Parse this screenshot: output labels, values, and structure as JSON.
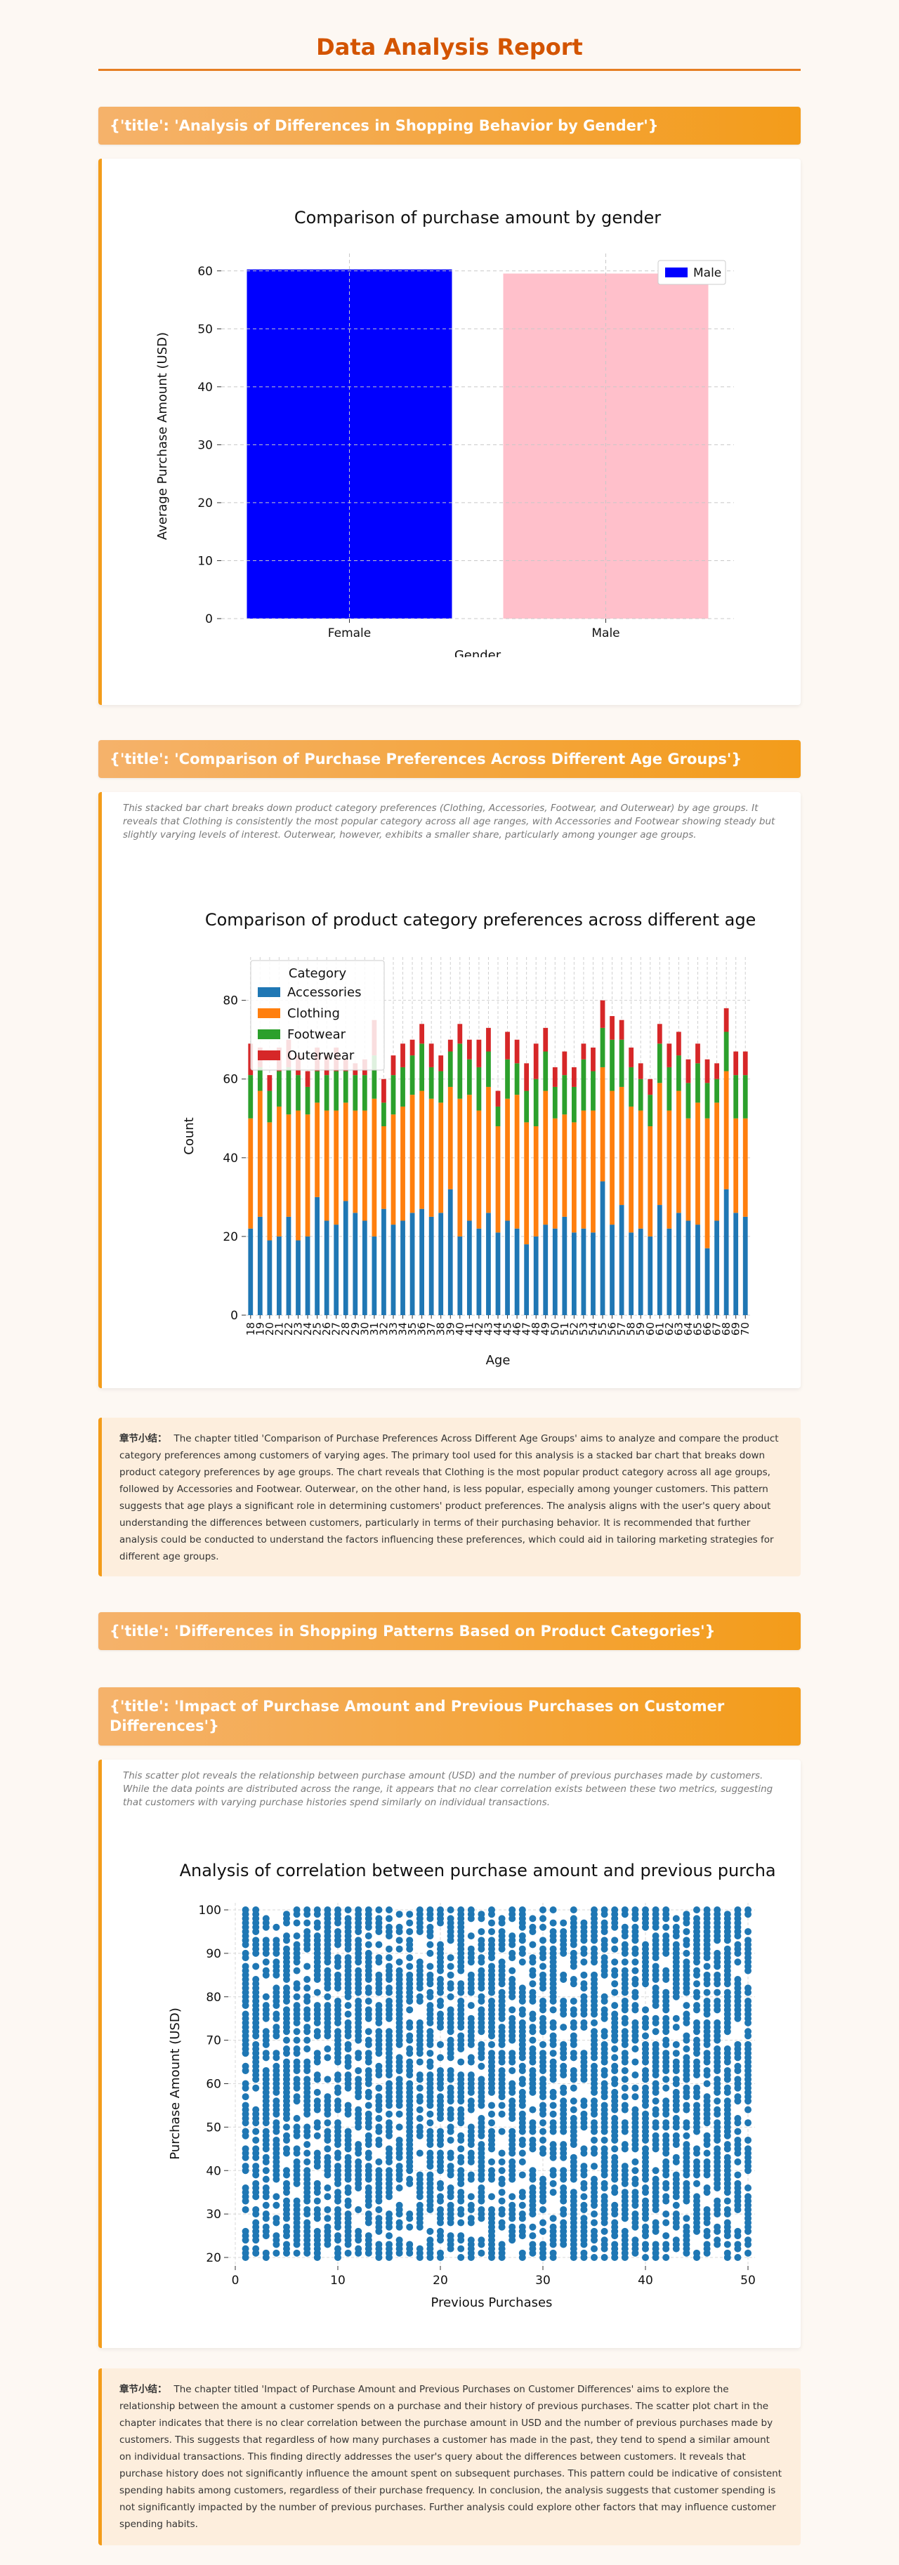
{
  "report": {
    "title": "Data Analysis Report"
  },
  "sections": [
    {
      "title": "{'title': 'Analysis of Differences in Shopping Behavior by Gender'}"
    },
    {
      "title": "{'title': 'Comparison of Purchase Preferences Across Different Age Groups'}",
      "description": "This stacked bar chart breaks down product category preferences (Clothing, Accessories, Footwear, and Outerwear) by age groups. It reveals that Clothing is consistently the most popular category across all age ranges, with Accessories and Footwear showing steady but slightly varying levels of interest. Outerwear, however, exhibits a smaller share, particularly among younger age groups.",
      "summary_label": "章节小结：",
      "summary": "The chapter titled 'Comparison of Purchase Preferences Across Different Age Groups' aims to analyze and compare the product category preferences among customers of varying ages. The primary tool used for this analysis is a stacked bar chart that breaks down product category preferences by age groups. The chart reveals that Clothing is the most popular product category across all age groups, followed by Accessories and Footwear. Outerwear, on the other hand, is less popular, especially among younger customers. This pattern suggests that age plays a significant role in determining customers' product preferences. The analysis aligns with the user's query about understanding the differences between customers, particularly in terms of their purchasing behavior. It is recommended that further analysis could be conducted to understand the factors influencing these preferences, which could aid in tailoring marketing strategies for different age groups."
    },
    {
      "title": "{'title': 'Differences in Shopping Patterns Based on Product Categories'}"
    },
    {
      "title": "{'title': 'Impact of Purchase Amount and Previous Purchases on Customer Differences'}",
      "description": "This scatter plot reveals the relationship between purchase amount (USD) and the number of previous purchases made by customers. While the data points are distributed across the range, it appears that no clear correlation exists between these two metrics, suggesting that customers with varying purchase histories spend similarly on individual transactions.",
      "summary_label": "章节小结：",
      "summary": "The chapter titled 'Impact of Purchase Amount and Previous Purchases on Customer Differences' aims to explore the relationship between the amount a customer spends on a purchase and their history of previous purchases. The scatter plot chart in the chapter indicates that there is no clear correlation between the purchase amount in USD and the number of previous purchases made by customers. This suggests that regardless of how many purchases a customer has made in the past, they tend to spend a similar amount on individual transactions. This finding directly addresses the user's query about the differences between customers. It reveals that purchase history does not significantly influence the amount spent on subsequent purchases. This pattern could be indicative of consistent spending habits among customers, regardless of their purchase frequency. In conclusion, the analysis suggests that customer spending is not significantly impacted by the number of previous purchases. Further analysis could explore other factors that may influence customer spending habits."
    }
  ],
  "chart_data": [
    {
      "type": "bar",
      "title": "Comparison of purchase amount by gender",
      "xlabel": "Gender",
      "ylabel": "Average Purchase Amount (USD)",
      "categories": [
        "Female",
        "Male"
      ],
      "values": [
        60.25,
        59.54
      ],
      "colors": [
        "#0000ff",
        "#ffc0cb"
      ],
      "ylim": [
        0,
        63
      ],
      "yticks": [
        0,
        10,
        20,
        30,
        40,
        50,
        60
      ],
      "legend": {
        "entries": [
          "Male"
        ],
        "placement": "top-right"
      },
      "grid": true
    },
    {
      "type": "bar",
      "stacked": true,
      "title": "Comparison of product category preferences across different age groups",
      "xlabel": "Age",
      "ylabel": "Count",
      "legend_title": "Category",
      "legend": {
        "placement": "top-left"
      },
      "grid": true,
      "ylim": [
        0,
        91
      ],
      "yticks": [
        0,
        20,
        40,
        60,
        80
      ],
      "categories": [
        18,
        19,
        20,
        21,
        22,
        23,
        24,
        25,
        26,
        27,
        28,
        29,
        30,
        31,
        32,
        33,
        34,
        35,
        36,
        37,
        38,
        39,
        40,
        41,
        42,
        43,
        44,
        45,
        46,
        47,
        48,
        49,
        50,
        51,
        52,
        53,
        54,
        55,
        56,
        57,
        58,
        59,
        60,
        61,
        62,
        63,
        64,
        65,
        66,
        67,
        68,
        69,
        70
      ],
      "series": [
        {
          "name": "Accessories",
          "color": "#1f77b4",
          "values": [
            22,
            25,
            19,
            20,
            25,
            19,
            20,
            30,
            24,
            23,
            29,
            26,
            24,
            20,
            27,
            23,
            24,
            26,
            27,
            25,
            26,
            32,
            20,
            24,
            22,
            26,
            21,
            24,
            22,
            18,
            20,
            23,
            22,
            25,
            21,
            22,
            21,
            34,
            23,
            28,
            21,
            22,
            20,
            28,
            22,
            26,
            24,
            23,
            17,
            24,
            32,
            26,
            25
          ]
        },
        {
          "name": "Clothing",
          "color": "#ff7f0e",
          "values": [
            28,
            32,
            30,
            33,
            26,
            33,
            31,
            24,
            28,
            29,
            25,
            26,
            28,
            35,
            21,
            28,
            29,
            30,
            30,
            30,
            28,
            26,
            35,
            32,
            30,
            32,
            27,
            31,
            34,
            31,
            28,
            34,
            28,
            26,
            28,
            30,
            31,
            29,
            34,
            30,
            32,
            30,
            28,
            31,
            30,
            31,
            26,
            31,
            33,
            30,
            30,
            24,
            25
          ]
        },
        {
          "name": "Footwear",
          "color": "#2ca02c",
          "values": [
            11,
            6,
            8,
            9,
            12,
            9,
            7,
            8,
            9,
            10,
            8,
            9,
            9,
            11,
            6,
            10,
            10,
            10,
            12,
            8,
            8,
            9,
            14,
            9,
            11,
            9,
            5,
            10,
            8,
            8,
            12,
            10,
            8,
            10,
            9,
            13,
            10,
            10,
            13,
            12,
            10,
            8,
            8,
            10,
            11,
            9,
            9,
            10,
            9,
            6,
            10,
            11,
            11
          ]
        },
        {
          "name": "Outerwear",
          "color": "#d62728",
          "values": [
            8,
            5,
            4,
            6,
            7,
            5,
            4,
            6,
            5,
            6,
            3,
            3,
            4,
            9,
            6,
            5,
            6,
            4,
            5,
            6,
            4,
            3,
            5,
            5,
            7,
            6,
            4,
            7,
            6,
            7,
            9,
            6,
            5,
            6,
            5,
            4,
            6,
            7,
            6,
            5,
            5,
            4,
            4,
            5,
            6,
            6,
            6,
            5,
            6,
            4,
            6,
            6,
            6
          ]
        }
      ]
    },
    {
      "type": "scatter",
      "title": "Analysis of correlation between purchase amount and previous purchases",
      "xlabel": "Previous Purchases",
      "ylabel": "Purchase Amount (USD)",
      "xlim": [
        0,
        50
      ],
      "ylim": [
        20,
        100
      ],
      "xticks": [
        0,
        10,
        20,
        30,
        40,
        50
      ],
      "yticks": [
        20,
        30,
        40,
        50,
        60,
        70,
        80,
        90,
        100
      ],
      "color": "#1f77b4",
      "grid": true,
      "point_distribution": "dense; Previous Purchases integers 1-50, Purchase Amount integers 20-100, about 70% of combinations present, no visible correlation"
    }
  ]
}
